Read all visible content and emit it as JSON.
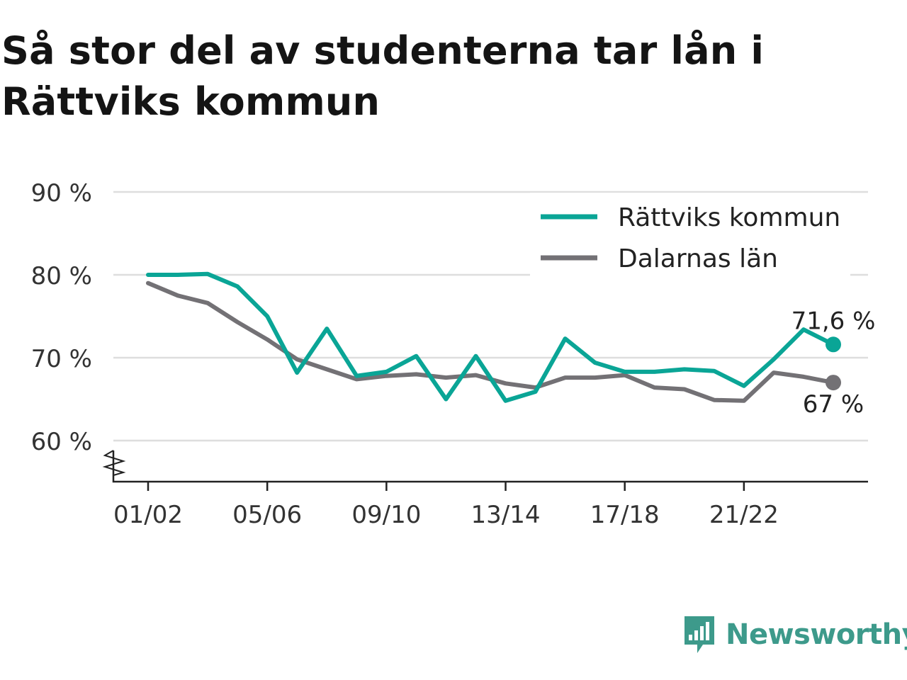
{
  "title": "Så stor del av studenterna tar lån i Rättviks kommun",
  "chart_data": {
    "type": "line",
    "title": "Så stor del av studenterna tar lån i Rättviks kommun",
    "x": [
      "01/02",
      "02/03",
      "03/04",
      "04/05",
      "05/06",
      "06/07",
      "07/08",
      "08/09",
      "09/10",
      "10/11",
      "11/12",
      "12/13",
      "13/14",
      "14/15",
      "15/16",
      "16/17",
      "17/18",
      "18/19",
      "19/20",
      "20/21",
      "21/22",
      "22/23",
      "23/24",
      "24/25"
    ],
    "x_tick_labels": [
      "01/02",
      "05/06",
      "09/10",
      "13/14",
      "17/18",
      "21/22"
    ],
    "y_ticks": [
      60,
      70,
      80,
      90
    ],
    "y_tick_labels": [
      "60 %",
      "70 %",
      "80 %",
      "90 %"
    ],
    "ylim": [
      55,
      90
    ],
    "axis_break": true,
    "grid": true,
    "legend_position": "top-right",
    "series": [
      {
        "name": "Rättviks kommun",
        "color": "#0aa596",
        "values": [
          80,
          80,
          80.1,
          78.6,
          75,
          68.2,
          73.5,
          67.8,
          68.3,
          70.2,
          65,
          70.2,
          64.8,
          65.9,
          72.3,
          69.4,
          68.3,
          68.3,
          68.6,
          68.4,
          66.6,
          69.8,
          73.4,
          71.6
        ],
        "end_label": "71,6 %"
      },
      {
        "name": "Dalarnas län",
        "color": "#737175",
        "values": [
          79,
          77.5,
          76.6,
          74.3,
          72.2,
          69.8,
          68.6,
          67.4,
          67.8,
          68,
          67.6,
          67.9,
          66.9,
          66.4,
          67.6,
          67.6,
          67.9,
          66.4,
          66.2,
          64.9,
          64.8,
          68.2,
          67.7,
          67
        ],
        "end_label": "67 %"
      }
    ]
  },
  "brand": {
    "name": "Newsworthy",
    "color": "#3d9a8b",
    "icon": "newsworthy-chart-icon"
  }
}
